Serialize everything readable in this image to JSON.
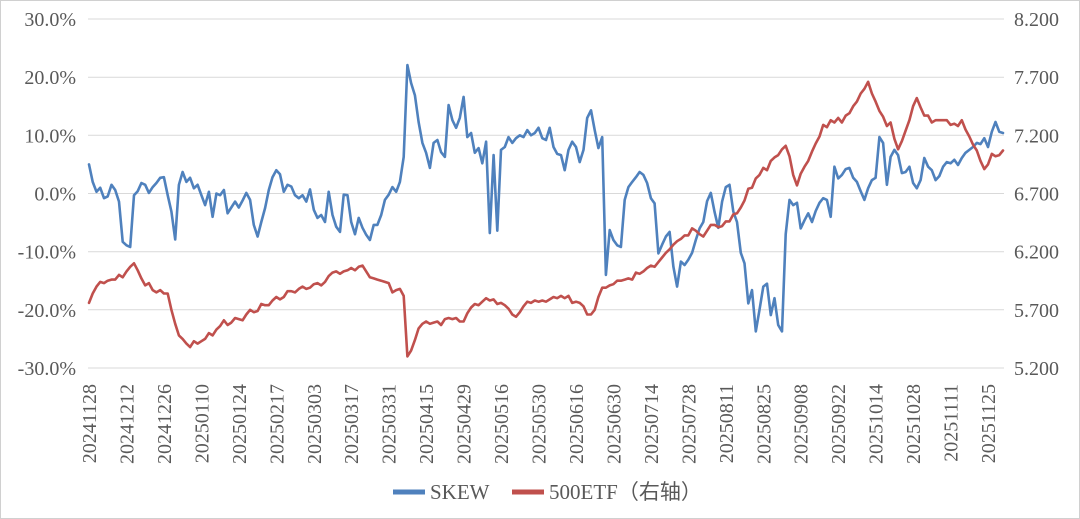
{
  "chart_title": "",
  "legend": {
    "position": "bottom-center",
    "items": [
      {
        "label": "SKEW",
        "color": "#4F81BD"
      },
      {
        "label": "500ETF（右轴）",
        "color": "#C0504D"
      }
    ]
  },
  "colors": {
    "skew_line": "#4F81BD",
    "etf_line": "#C0504D",
    "gridline": "#D9D9D9",
    "axis_text": "#595959",
    "border": "#D0D0D0",
    "background": "#FFFFFF"
  },
  "chart_data": {
    "type": "line",
    "title": "",
    "xlabel": "",
    "ylabel_left": "",
    "ylabel_right": "",
    "grid": "horizontal",
    "legend_position": "bottom",
    "left_axis": {
      "min": -30,
      "max": 30,
      "unit": "%",
      "ticks": [
        "30.0%",
        "20.0%",
        "10.0%",
        "0.0%",
        "-10.0%",
        "-20.0%",
        "-30.0%"
      ]
    },
    "right_axis": {
      "min": 5.2,
      "max": 8.2,
      "ticks": [
        "8.200",
        "7.700",
        "7.200",
        "6.700",
        "6.200",
        "5.700",
        "5.200"
      ]
    },
    "x_labels": [
      "20241128",
      "20241212",
      "20241226",
      "20250110",
      "20250124",
      "20250217",
      "20250303",
      "20250317",
      "20250331",
      "20250415",
      "20250429",
      "20250516",
      "20250530",
      "20250616",
      "20250630",
      "20250714",
      "20250728",
      "20250811",
      "20250825",
      "20250908",
      "20250922",
      "20251014",
      "20251028",
      "20251111",
      "20251125"
    ],
    "x_labels_every_n_points": 10,
    "series": [
      {
        "name": "SKEW",
        "axis": "left",
        "unit": "%",
        "color": "#4F81BD",
        "values": [
          5.0,
          2.0,
          0.3,
          1.0,
          -0.8,
          -0.5,
          1.5,
          0.6,
          -1.4,
          -8.3,
          -8.9,
          -9.2,
          -0.3,
          0.4,
          1.8,
          1.5,
          0.1,
          1.1,
          1.8,
          2.7,
          2.8,
          -0.3,
          -3.1,
          -7.9,
          1.5,
          3.7,
          2.0,
          2.7,
          0.9,
          1.5,
          -0.3,
          -2.0,
          0.3,
          -4.0,
          0.0,
          -0.3,
          0.6,
          -3.4,
          -2.4,
          -1.4,
          -2.4,
          -1.2,
          0.1,
          -1.1,
          -5.4,
          -7.4,
          -4.9,
          -2.5,
          0.6,
          2.8,
          4.0,
          3.3,
          0.3,
          1.5,
          1.2,
          -0.3,
          -0.8,
          -0.3,
          -1.4,
          0.7,
          -2.8,
          -4.2,
          -3.7,
          -4.9,
          0.3,
          -3.7,
          -5.7,
          -6.6,
          -0.2,
          -0.3,
          -4.9,
          -7.0,
          -4.2,
          -5.9,
          -7.1,
          -8.0,
          -5.4,
          -5.4,
          -3.7,
          -1.1,
          -0.2,
          1.1,
          0.3,
          2.0,
          6.3,
          22.1,
          19.0,
          16.9,
          12.3,
          8.7,
          7.0,
          4.4,
          8.7,
          9.2,
          7.1,
          6.3,
          15.2,
          12.6,
          11.3,
          13.0,
          16.6,
          9.7,
          10.4,
          7.0,
          7.8,
          5.2,
          8.9,
          -6.8,
          6.6,
          -6.4,
          7.5,
          8.0,
          9.7,
          8.7,
          9.5,
          10.0,
          9.7,
          10.9,
          10.0,
          10.4,
          11.3,
          9.5,
          9.2,
          11.3,
          8.0,
          6.8,
          6.6,
          4.0,
          7.5,
          8.9,
          8.0,
          5.4,
          7.5,
          13.0,
          14.3,
          10.9,
          7.8,
          9.7,
          -14.0,
          -6.3,
          -8.0,
          -8.9,
          -9.2,
          -1.1,
          1.1,
          2.0,
          2.8,
          3.7,
          3.2,
          1.8,
          -0.8,
          -1.7,
          -10.3,
          -8.8,
          -7.4,
          -6.6,
          -12.6,
          -16.0,
          -11.7,
          -12.3,
          -11.4,
          -10.2,
          -8.0,
          -6.0,
          -4.9,
          -1.3,
          0.1,
          -3.2,
          -5.9,
          -1.4,
          1.1,
          1.5,
          -3.1,
          -4.9,
          -10.2,
          -12.0,
          -18.9,
          -16.6,
          -23.7,
          -20.0,
          -16.0,
          -15.5,
          -20.9,
          -18.0,
          -22.6,
          -23.7,
          -7.0,
          -1.1,
          -2.0,
          -1.6,
          -6.0,
          -4.6,
          -3.4,
          -4.9,
          -3.0,
          -1.6,
          -0.8,
          -1.1,
          -4.0,
          4.6,
          2.6,
          3.2,
          4.2,
          4.4,
          2.7,
          2.0,
          0.4,
          -1.1,
          0.9,
          2.3,
          2.7,
          9.7,
          8.7,
          1.5,
          6.3,
          7.5,
          6.6,
          3.5,
          3.7,
          4.6,
          1.8,
          0.9,
          2.3,
          6.1,
          4.6,
          4.0,
          2.3,
          3.0,
          4.6,
          5.4,
          5.2,
          5.8,
          4.9,
          6.1,
          7.0,
          7.5,
          8.0,
          8.7,
          8.5,
          9.5,
          8.0,
          10.6,
          12.3,
          10.6,
          10.4
        ]
      },
      {
        "name": "500ETF（右轴）",
        "axis": "right",
        "unit": "",
        "color": "#C0504D",
        "values": [
          5.76,
          5.84,
          5.9,
          5.94,
          5.93,
          5.95,
          5.96,
          5.96,
          6.0,
          5.98,
          6.03,
          6.07,
          6.1,
          6.04,
          5.97,
          5.91,
          5.93,
          5.87,
          5.85,
          5.87,
          5.84,
          5.84,
          5.7,
          5.58,
          5.48,
          5.45,
          5.41,
          5.38,
          5.43,
          5.41,
          5.43,
          5.45,
          5.5,
          5.48,
          5.53,
          5.56,
          5.61,
          5.57,
          5.59,
          5.63,
          5.62,
          5.61,
          5.66,
          5.7,
          5.68,
          5.69,
          5.75,
          5.74,
          5.74,
          5.78,
          5.81,
          5.79,
          5.81,
          5.86,
          5.86,
          5.85,
          5.88,
          5.9,
          5.88,
          5.89,
          5.92,
          5.93,
          5.91,
          5.94,
          5.99,
          6.02,
          6.03,
          6.01,
          6.03,
          6.04,
          6.06,
          6.04,
          6.07,
          6.08,
          6.03,
          5.98,
          5.97,
          5.96,
          5.95,
          5.94,
          5.93,
          5.85,
          5.87,
          5.88,
          5.82,
          5.3,
          5.35,
          5.44,
          5.54,
          5.58,
          5.6,
          5.58,
          5.59,
          5.6,
          5.57,
          5.62,
          5.63,
          5.62,
          5.63,
          5.6,
          5.6,
          5.67,
          5.72,
          5.75,
          5.74,
          5.77,
          5.8,
          5.78,
          5.79,
          5.75,
          5.76,
          5.74,
          5.71,
          5.66,
          5.64,
          5.68,
          5.73,
          5.77,
          5.76,
          5.78,
          5.77,
          5.78,
          5.77,
          5.79,
          5.81,
          5.8,
          5.82,
          5.8,
          5.82,
          5.76,
          5.77,
          5.76,
          5.73,
          5.66,
          5.66,
          5.7,
          5.81,
          5.89,
          5.89,
          5.91,
          5.92,
          5.95,
          5.95,
          5.96,
          5.97,
          5.96,
          6.02,
          6.01,
          6.03,
          6.06,
          6.08,
          6.07,
          6.11,
          6.15,
          6.19,
          6.22,
          6.26,
          6.29,
          6.31,
          6.34,
          6.34,
          6.4,
          6.38,
          6.35,
          6.33,
          6.38,
          6.43,
          6.43,
          6.41,
          6.42,
          6.46,
          6.46,
          6.52,
          6.53,
          6.58,
          6.64,
          6.74,
          6.75,
          6.83,
          6.86,
          6.92,
          6.9,
          6.98,
          7.01,
          7.03,
          7.08,
          7.11,
          7.02,
          6.86,
          6.77,
          6.87,
          6.93,
          6.98,
          7.06,
          7.13,
          7.19,
          7.29,
          7.27,
          7.33,
          7.31,
          7.35,
          7.31,
          7.37,
          7.39,
          7.45,
          7.49,
          7.56,
          7.6,
          7.66,
          7.56,
          7.49,
          7.41,
          7.36,
          7.28,
          7.31,
          7.17,
          7.08,
          7.15,
          7.24,
          7.33,
          7.45,
          7.52,
          7.44,
          7.37,
          7.37,
          7.31,
          7.33,
          7.33,
          7.33,
          7.33,
          7.29,
          7.3,
          7.28,
          7.33,
          7.25,
          7.19,
          7.12,
          7.07,
          6.98,
          6.91,
          6.95,
          7.04,
          7.02,
          7.03,
          7.07
        ]
      }
    ]
  }
}
